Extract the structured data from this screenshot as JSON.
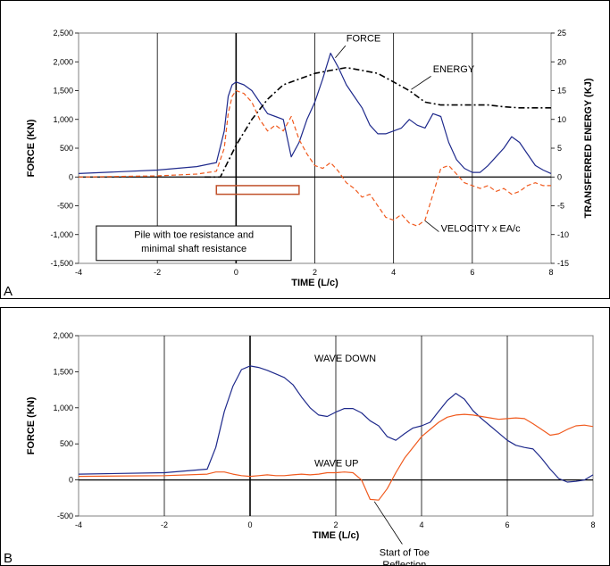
{
  "chart_data": [
    {
      "panel": "A",
      "type": "line",
      "xlabel": "TIME  (L/c)",
      "ylabel": "FORCE  (KN)",
      "y2label": "TRANSFERRED ENERGY  (KJ)",
      "xlim": [
        -4,
        8
      ],
      "ylim": [
        -1500,
        2500
      ],
      "y2lim": [
        -15,
        25
      ],
      "xticks": [
        -4,
        -2,
        0,
        2,
        4,
        6,
        8
      ],
      "xtick_labels": [
        "-4",
        "-2",
        "0",
        "2",
        "4",
        "6",
        "8"
      ],
      "yticks": [
        -1500,
        -1000,
        -500,
        0,
        500,
        1000,
        1500,
        2000,
        2500
      ],
      "ytick_labels": [
        "-1,500",
        "-1,000",
        "-500",
        "0",
        "500",
        "1,000",
        "1,500",
        "2,000",
        "2,500"
      ],
      "y2ticks": [
        -15,
        -10,
        -5,
        0,
        5,
        10,
        15,
        20,
        25
      ],
      "y2tick_labels": [
        "-15",
        "-10",
        "-5",
        "0",
        "5",
        "10",
        "15",
        "20",
        "25"
      ],
      "grid": "vertical",
      "series": [
        {
          "name": "FORCE",
          "color": "#1f2a8c",
          "dash": "solid",
          "axis": "left",
          "x": [
            -4,
            -2,
            -1,
            -0.5,
            -0.3,
            -0.2,
            -0.1,
            0,
            0.2,
            0.4,
            0.6,
            0.8,
            1.0,
            1.2,
            1.4,
            1.6,
            1.8,
            2.0,
            2.2,
            2.4,
            2.6,
            2.8,
            3.0,
            3.2,
            3.4,
            3.6,
            3.8,
            4.0,
            4.2,
            4.4,
            4.6,
            4.8,
            5.0,
            5.2,
            5.4,
            5.6,
            5.8,
            6.0,
            6.2,
            6.4,
            6.6,
            6.8,
            7.0,
            7.2,
            7.4,
            7.6,
            7.8,
            8.0
          ],
          "y": [
            60,
            120,
            180,
            250,
            800,
            1400,
            1600,
            1650,
            1600,
            1500,
            1300,
            1100,
            1050,
            1000,
            350,
            600,
            1000,
            1300,
            1700,
            2150,
            1900,
            1600,
            1400,
            1200,
            900,
            750,
            750,
            800,
            850,
            1000,
            900,
            850,
            1100,
            1050,
            600,
            300,
            150,
            80,
            80,
            200,
            350,
            500,
            700,
            600,
            400,
            200,
            120,
            60
          ]
        },
        {
          "name": "ENERGY",
          "color": "#000000",
          "dash": "dashdot",
          "axis": "right",
          "x": [
            -0.8,
            -0.4,
            0,
            0.4,
            0.8,
            1.2,
            1.6,
            2.0,
            2.4,
            2.8,
            3.2,
            3.6,
            4.0,
            4.4,
            4.8,
            5.2,
            5.6,
            6.0,
            6.4,
            6.8,
            7.2,
            7.6,
            8.0
          ],
          "y": [
            0,
            0,
            5.5,
            10,
            13.5,
            16,
            17,
            18,
            18.5,
            19,
            18.5,
            18,
            16.5,
            15,
            13,
            12.5,
            12.5,
            12.5,
            12.5,
            12.2,
            12,
            12,
            12
          ]
        },
        {
          "name": "VELOCITY x EA/c",
          "color": "#f05a1e",
          "dash": "dash",
          "axis": "left",
          "x": [
            -4,
            -2,
            -1,
            -0.5,
            -0.3,
            -0.2,
            -0.1,
            0,
            0.2,
            0.4,
            0.6,
            0.8,
            1.0,
            1.2,
            1.4,
            1.6,
            1.8,
            2.0,
            2.2,
            2.4,
            2.6,
            2.8,
            3.0,
            3.2,
            3.4,
            3.6,
            3.8,
            4.0,
            4.2,
            4.4,
            4.6,
            4.8,
            5.0,
            5.2,
            5.4,
            5.6,
            5.8,
            6.0,
            6.2,
            6.4,
            6.6,
            6.8,
            7.0,
            7.2,
            7.4,
            7.6,
            7.8,
            8.0
          ],
          "y": [
            0,
            20,
            50,
            100,
            500,
            1100,
            1400,
            1500,
            1450,
            1300,
            1000,
            800,
            900,
            800,
            1050,
            650,
            400,
            200,
            150,
            250,
            100,
            -100,
            -200,
            -350,
            -300,
            -500,
            -700,
            -750,
            -650,
            -800,
            -850,
            -750,
            -300,
            150,
            200,
            50,
            -100,
            -150,
            -200,
            -150,
            -250,
            -200,
            -300,
            -250,
            -150,
            -100,
            -150,
            -150
          ]
        }
      ],
      "annotations": [
        {
          "text": "FORCE",
          "x": 2.8,
          "y": 2350
        },
        {
          "text": "ENERGY",
          "x": 5.0,
          "y": 1820
        },
        {
          "text": "VELOCITY x EA/c",
          "x": 5.2,
          "y": -950
        },
        {
          "text": "Pile with toe resistance and",
          "x": 0.9,
          "y": -1060
        },
        {
          "text": "minimal shaft resistance",
          "x": 0.9,
          "y": -1300
        }
      ],
      "rectangle": {
        "x0": -0.5,
        "x1": 1.6,
        "y0": -150,
        "y1": -300,
        "color": "#c0502a"
      },
      "panel_letter": "A"
    },
    {
      "panel": "B",
      "type": "line",
      "xlabel": "TIME  (L/c)",
      "ylabel": "FORCE  (KN)",
      "xlim": [
        -4,
        8
      ],
      "ylim": [
        -500,
        2000
      ],
      "xticks": [
        -4,
        -2,
        0,
        2,
        4,
        6,
        8
      ],
      "xtick_labels": [
        "-4",
        "-2",
        "0",
        "2",
        "4",
        "6",
        "8"
      ],
      "yticks": [
        -500,
        0,
        500,
        1000,
        1500,
        2000
      ],
      "ytick_labels": [
        "-500",
        "0",
        "500",
        "1,000",
        "1,500",
        "2,000"
      ],
      "grid": "vertical",
      "series": [
        {
          "name": "WAVE DOWN",
          "color": "#1f2a8c",
          "dash": "solid",
          "x": [
            -4,
            -2,
            -1,
            -0.8,
            -0.6,
            -0.4,
            -0.2,
            0,
            0.2,
            0.4,
            0.6,
            0.8,
            1.0,
            1.2,
            1.4,
            1.6,
            1.8,
            2.0,
            2.2,
            2.4,
            2.6,
            2.8,
            3.0,
            3.2,
            3.4,
            3.6,
            3.8,
            4.0,
            4.2,
            4.4,
            4.6,
            4.8,
            5.0,
            5.2,
            5.4,
            5.6,
            5.8,
            6.0,
            6.2,
            6.4,
            6.6,
            6.8,
            7.0,
            7.2,
            7.4,
            7.6,
            7.8,
            8.0
          ],
          "y": [
            80,
            100,
            150,
            450,
            950,
            1300,
            1530,
            1580,
            1560,
            1520,
            1470,
            1420,
            1320,
            1150,
            1000,
            900,
            880,
            940,
            990,
            990,
            930,
            820,
            750,
            600,
            550,
            640,
            720,
            750,
            800,
            950,
            1100,
            1200,
            1120,
            960,
            850,
            750,
            650,
            550,
            480,
            450,
            430,
            300,
            150,
            20,
            -30,
            -20,
            0,
            70
          ]
        },
        {
          "name": "WAVE UP",
          "color": "#f05a1e",
          "dash": "solid",
          "x": [
            -4,
            -2,
            -1,
            -0.8,
            -0.6,
            -0.4,
            -0.2,
            0,
            0.2,
            0.4,
            0.6,
            0.8,
            1.0,
            1.2,
            1.4,
            1.6,
            1.8,
            2.0,
            2.2,
            2.4,
            2.6,
            2.8,
            3.0,
            3.2,
            3.4,
            3.6,
            3.8,
            4.0,
            4.2,
            4.4,
            4.6,
            4.8,
            5.0,
            5.2,
            5.4,
            5.6,
            5.8,
            6.0,
            6.2,
            6.4,
            6.6,
            6.8,
            7.0,
            7.2,
            7.4,
            7.6,
            7.8,
            8.0
          ],
          "y": [
            50,
            60,
            80,
            110,
            110,
            80,
            60,
            50,
            60,
            70,
            60,
            60,
            70,
            80,
            70,
            80,
            100,
            100,
            110,
            100,
            0,
            -270,
            -280,
            -120,
            100,
            300,
            450,
            600,
            700,
            800,
            870,
            900,
            910,
            900,
            880,
            860,
            840,
            850,
            860,
            850,
            780,
            700,
            620,
            640,
            700,
            750,
            760,
            740
          ]
        }
      ],
      "annotations": [
        {
          "text": "WAVE DOWN",
          "x": 1.5,
          "y": 1640
        },
        {
          "text": "WAVE UP",
          "x": 1.5,
          "y": 185
        },
        {
          "text": "Start of Toe",
          "x": 3.6,
          "y": -1050
        },
        {
          "text": "Reflection",
          "x": 3.6,
          "y": -1220
        }
      ],
      "panel_letter": "B"
    }
  ]
}
